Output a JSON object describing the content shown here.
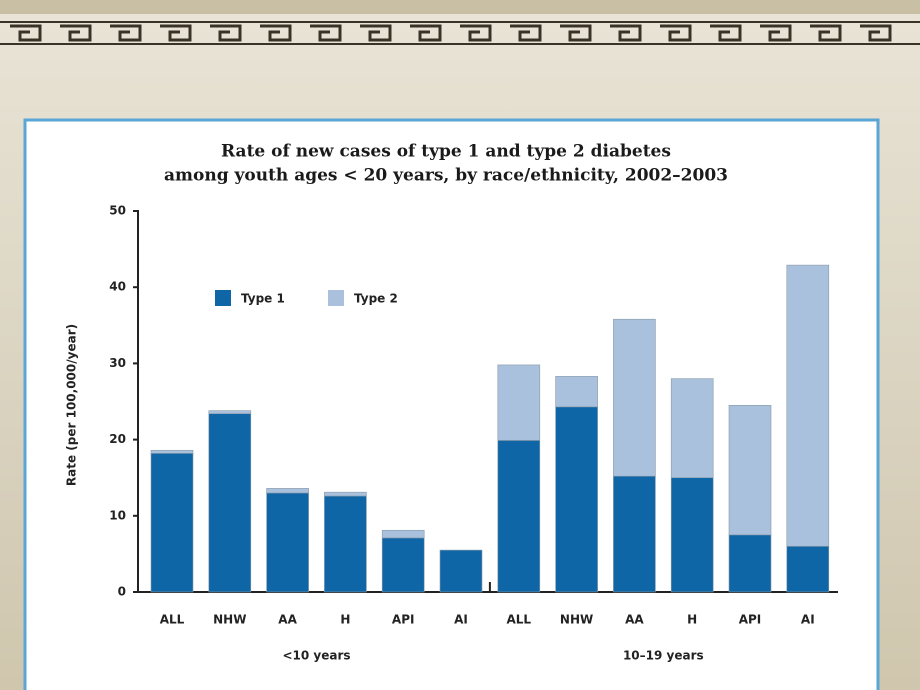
{
  "chart_data": {
    "type": "stacked_bar",
    "title": [
      "Rate of new cases of type 1 and type 2 diabetes",
      "among youth ages < 20 years, by race/ethnicity, 2002–2003"
    ],
    "ylabel": "Rate (per 100,000/year)",
    "categories": [
      "ALL",
      "NHW",
      "AA",
      "H",
      "API",
      "AI",
      "ALL",
      "NHW",
      "AA",
      "H",
      "API",
      "AI"
    ],
    "x_groups": [
      "<10 years",
      "10–19 years"
    ],
    "series": [
      {
        "name": "Type 1",
        "color": "#0f66a6",
        "values": [
          18.2,
          23.4,
          13.0,
          12.6,
          7.1,
          5.5,
          19.9,
          24.3,
          15.2,
          15.0,
          7.5,
          6.0
        ]
      },
      {
        "name": "Type 2",
        "color": "#a9c1dd",
        "values": [
          0.4,
          0.4,
          0.6,
          0.5,
          1.0,
          0,
          9.9,
          4.0,
          20.6,
          13.0,
          17.0,
          36.9
        ]
      }
    ],
    "ylim": [
      0,
      50
    ],
    "yticks": [
      0,
      10,
      20,
      30,
      40,
      50
    ]
  }
}
